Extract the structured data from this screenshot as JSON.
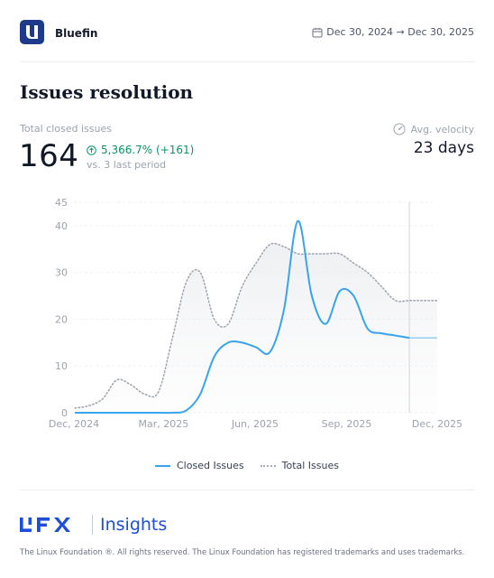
{
  "header": {
    "app_name": "Bluefin",
    "date_range": "Dec 30, 2024 → Dec 30, 2025",
    "icons": {
      "logo": "bluefin-logo",
      "calendar": "calendar-icon"
    }
  },
  "widget": {
    "title": "Issues resolution",
    "kpi": {
      "label": "Total closed issues",
      "value": "164",
      "change": "5,366.7% (+161)",
      "comparison": "vs. 3 last period",
      "change_color": "#059669"
    },
    "velocity": {
      "label": "Avg. velocity",
      "value": "23 days",
      "icon": "gauge-icon"
    }
  },
  "chart_data": {
    "type": "line",
    "x": [
      "2024-12-02",
      "2024-12-16",
      "2024-12-30",
      "2025-01-13",
      "2025-01-27",
      "2025-02-10",
      "2025-02-24",
      "2025-03-10",
      "2025-03-24",
      "2025-04-07",
      "2025-04-21",
      "2025-05-05",
      "2025-05-19",
      "2025-06-02",
      "2025-06-16",
      "2025-06-30",
      "2025-07-14",
      "2025-07-28",
      "2025-08-11",
      "2025-08-25",
      "2025-09-08",
      "2025-09-22",
      "2025-10-06",
      "2025-10-20",
      "2025-11-03",
      "2025-11-17",
      "2025-12-01"
    ],
    "series": [
      {
        "name": "Closed Issues",
        "color": "#38a4eb",
        "style": "solid",
        "values": [
          0,
          0,
          0,
          0,
          0,
          0,
          0,
          0,
          0.5,
          4,
          12,
          15,
          15,
          14,
          13,
          22,
          41,
          25,
          19,
          26,
          25,
          18,
          17,
          16.5,
          16,
          16,
          16
        ]
      },
      {
        "name": "Total Issues",
        "color": "#a7acb5",
        "style": "dotted",
        "values": [
          1,
          1.5,
          3,
          7,
          6,
          4,
          4.5,
          16,
          28,
          30,
          20,
          19,
          27,
          32,
          36,
          35.5,
          34,
          34,
          34,
          34,
          32,
          30,
          27,
          24,
          24,
          24,
          24
        ]
      }
    ],
    "xticks": [
      "Dec, 2024",
      "Mar, 2025",
      "Jun, 2025",
      "Sep, 2025",
      "Dec, 2025"
    ],
    "yticks": [
      "0",
      "10",
      "20",
      "30",
      "40",
      "45"
    ],
    "ylim": [
      0,
      45
    ],
    "grid": true,
    "legend": "bottom",
    "forecast_from": "2025-11-03"
  },
  "legend": {
    "closed_label": "Closed Issues",
    "total_label": "Total Issues"
  },
  "footer": {
    "brand": "LFX",
    "product": "Insights",
    "copyright": "The Linux Foundation ®. All rights reserved. The Linux Foundation has registered trademarks and uses trademarks."
  }
}
